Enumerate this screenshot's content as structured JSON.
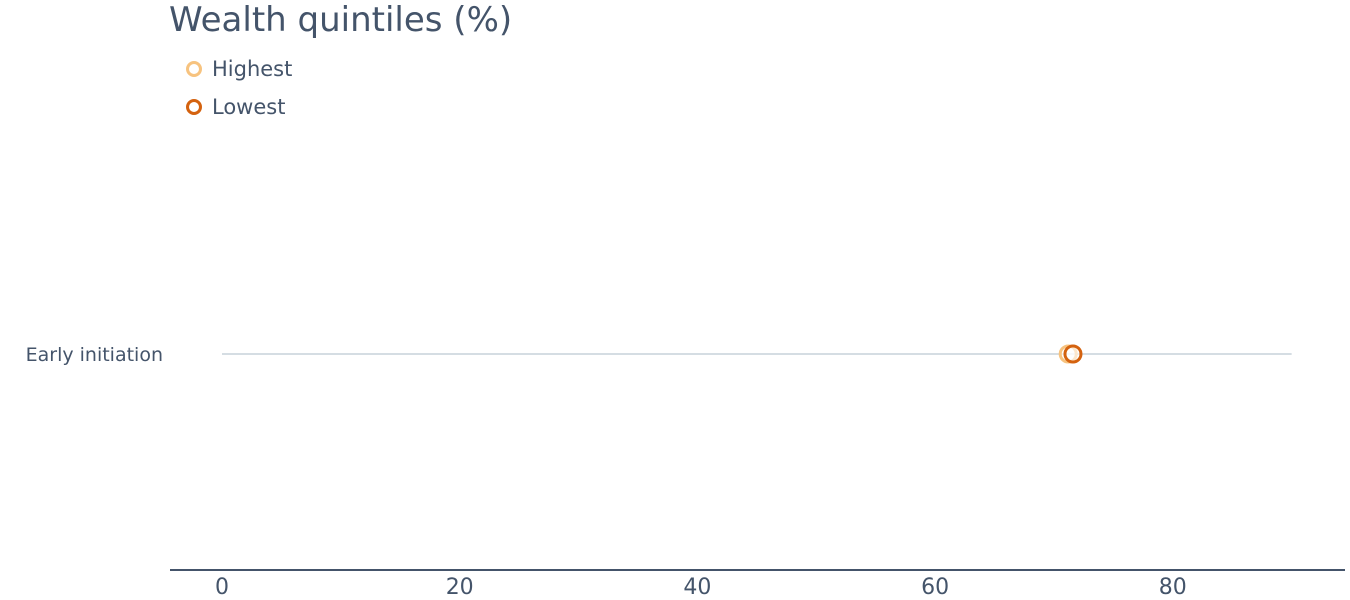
{
  "chart_data": {
    "type": "scatter",
    "title": "Wealth quintiles (%)",
    "categories": [
      "Early initiation"
    ],
    "series": [
      {
        "name": "Highest",
        "color": "#f7c37f",
        "values": [
          71.2
        ]
      },
      {
        "name": "Lowest",
        "color": "#d4620f",
        "values": [
          71.6
        ]
      }
    ],
    "x_ticks": [
      "0",
      "20",
      "40",
      "60",
      "80"
    ],
    "xlim": [
      0,
      90
    ],
    "legend_position": "top-left",
    "grid": false
  }
}
